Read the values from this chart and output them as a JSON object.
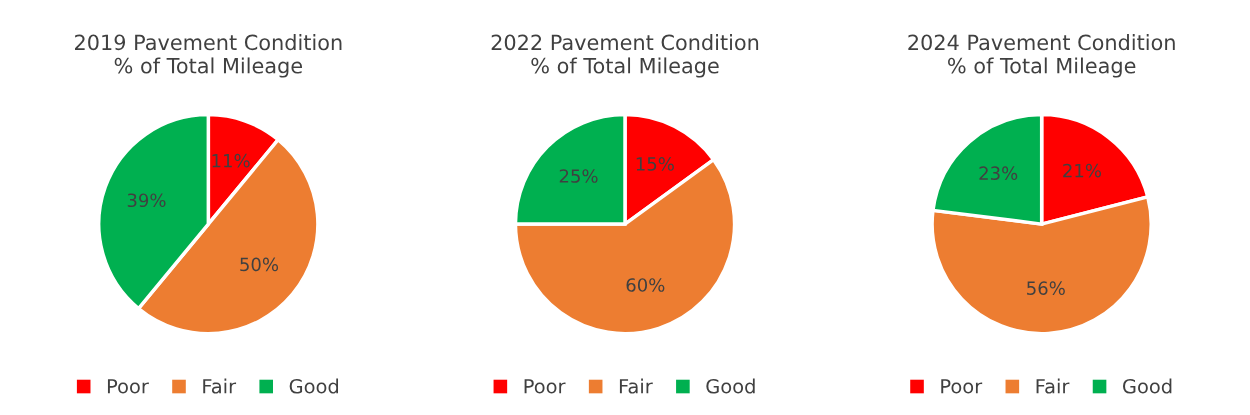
{
  "chart_data": [
    {
      "type": "pie",
      "title": "2019 Pavement Condition\n% of Total Mileage",
      "categories": [
        "Poor",
        "Fair",
        "Good"
      ],
      "values": [
        11,
        50,
        39
      ],
      "colors": [
        "#ff0000",
        "#ed7d31",
        "#00b050"
      ],
      "value_labels": [
        "11%",
        "50%",
        "39%"
      ],
      "legend": "bottom"
    },
    {
      "type": "pie",
      "title": "2022 Pavement Condition\n% of Total Mileage",
      "categories": [
        "Poor",
        "Fair",
        "Good"
      ],
      "values": [
        15,
        60,
        25
      ],
      "colors": [
        "#ff0000",
        "#ed7d31",
        "#00b050"
      ],
      "value_labels": [
        "15%",
        "60%",
        "25%"
      ],
      "legend": "bottom"
    },
    {
      "type": "pie",
      "title": "2024 Pavement Condition\n% of Total Mileage",
      "categories": [
        "Poor",
        "Fair",
        "Good"
      ],
      "values": [
        21,
        56,
        23
      ],
      "colors": [
        "#ff0000",
        "#ed7d31",
        "#00b050"
      ],
      "value_labels": [
        "21%",
        "56%",
        "23%"
      ],
      "legend": "bottom"
    }
  ]
}
